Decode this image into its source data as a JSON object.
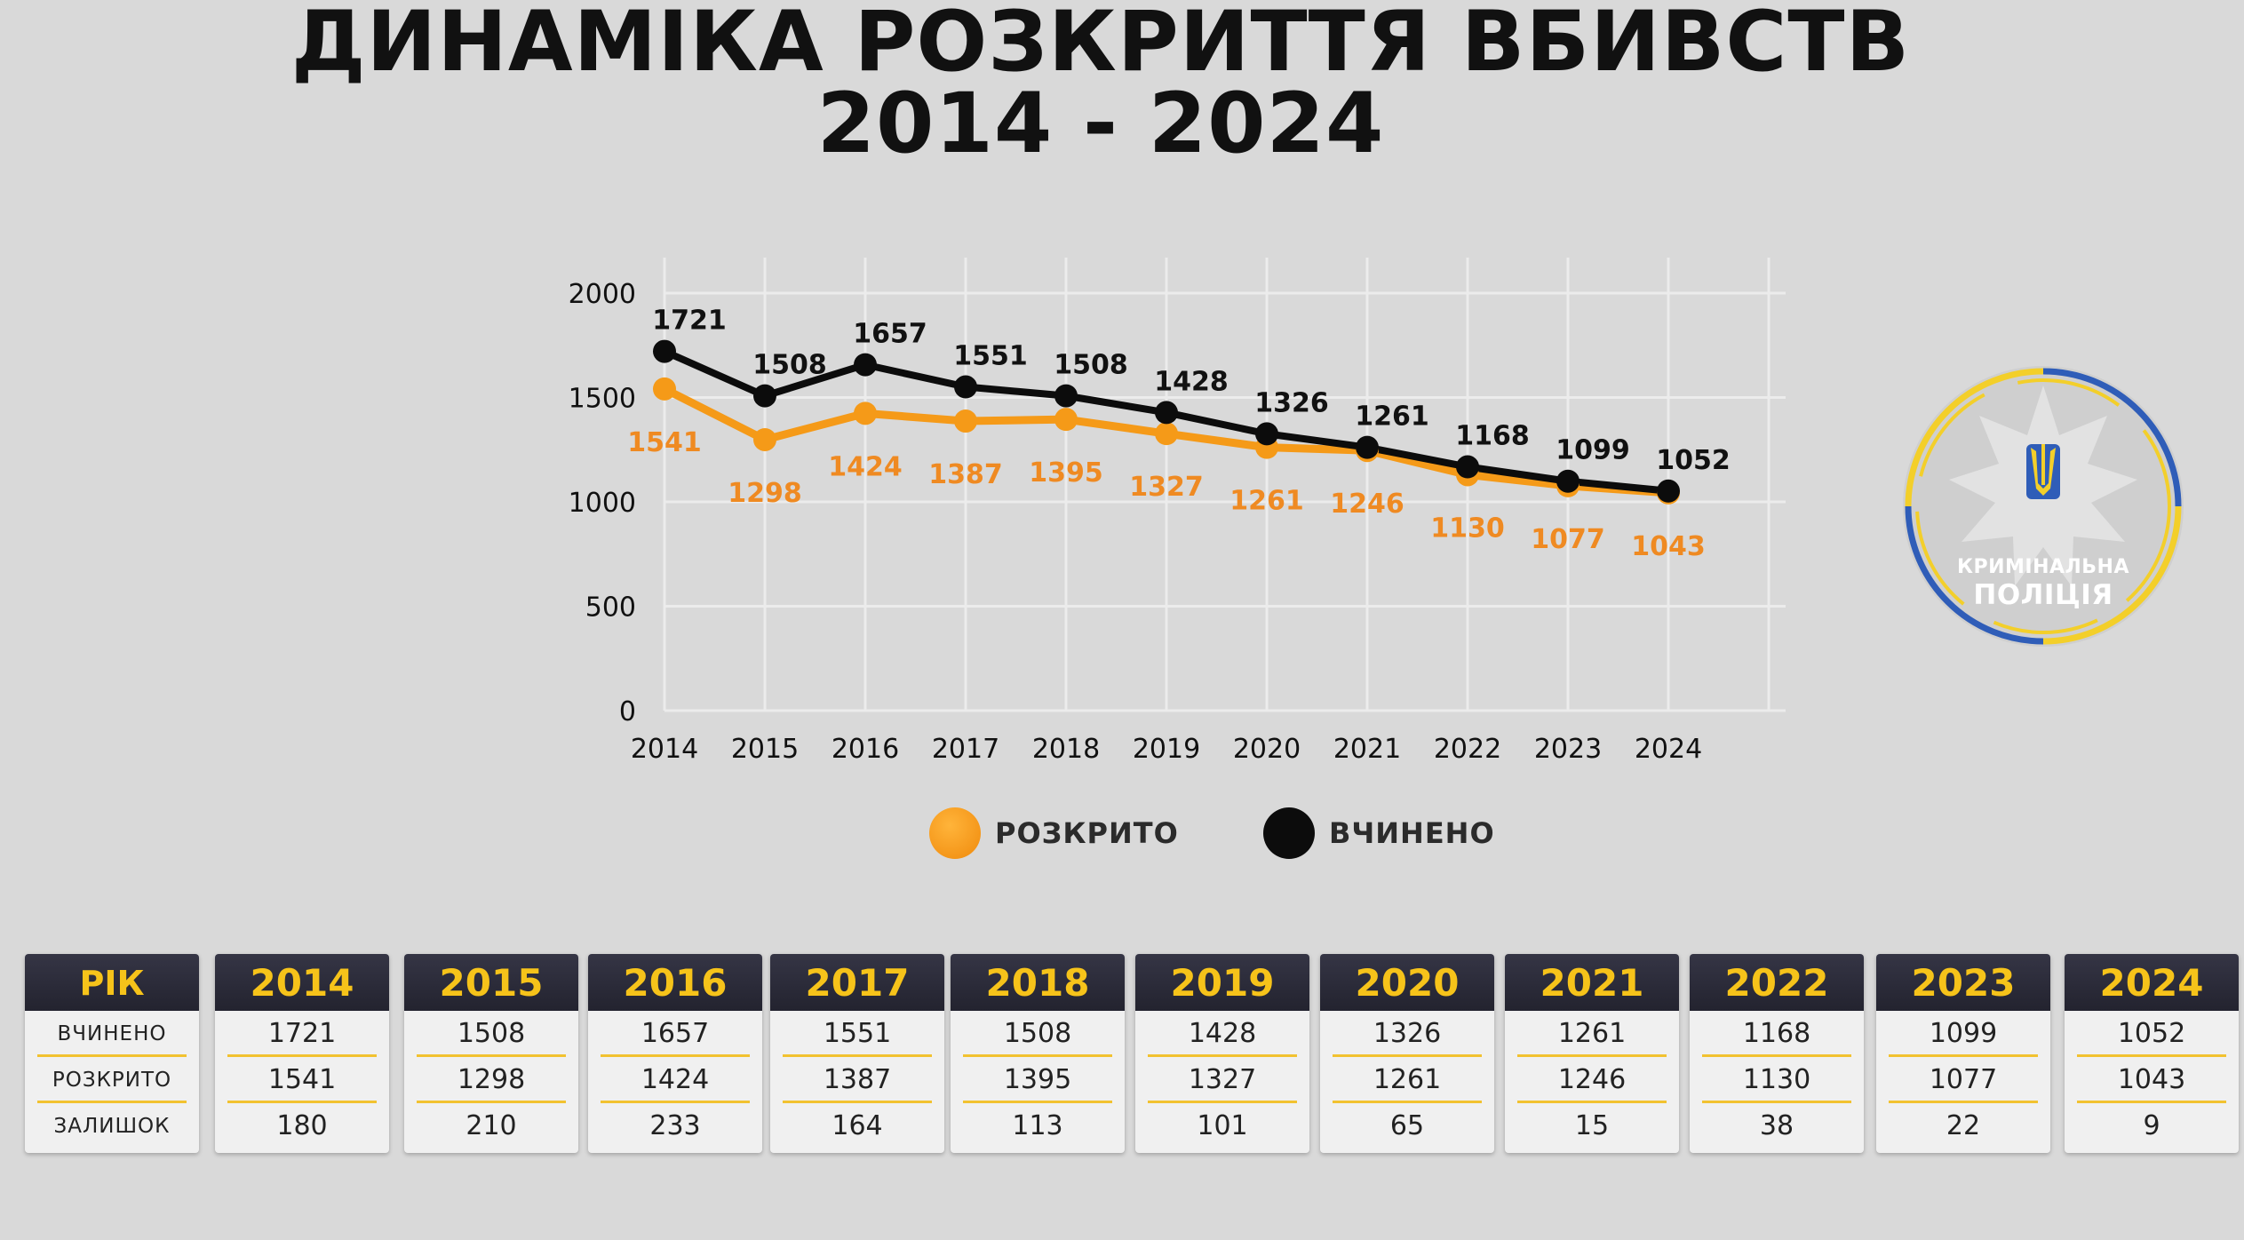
{
  "title_line1": "ДИНАМІКА РОЗКРИТТЯ ВБИВСТВ",
  "title_line2": "2014 - 2024",
  "colors": {
    "orange": "#f59a18",
    "black": "#0c0c0c",
    "label_orange": "#ef8a22",
    "table_head": "#2c2c3a",
    "table_year": "#f6c31a",
    "badge_blue": "#2f5db8",
    "badge_yellow": "#f3cf2a"
  },
  "chart_data": {
    "type": "line",
    "x": [
      "2014",
      "2015",
      "2016",
      "2017",
      "2018",
      "2019",
      "2020",
      "2021",
      "2022",
      "2023",
      "2024"
    ],
    "series": [
      {
        "name": "ВЧИНЕНО",
        "color": "#0c0c0c",
        "values": [
          1721,
          1508,
          1657,
          1551,
          1508,
          1428,
          1326,
          1261,
          1168,
          1099,
          1052
        ]
      },
      {
        "name": "РОЗКРИТО",
        "color": "#f59a18",
        "values": [
          1541,
          1298,
          1424,
          1387,
          1395,
          1327,
          1261,
          1246,
          1130,
          1077,
          1043
        ]
      }
    ],
    "y_ticks": [
      "0",
      "500",
      "1000",
      "1500",
      "2000"
    ],
    "ylim": [
      0,
      2000
    ],
    "grid": true,
    "legend_position": "bottom"
  },
  "legend": {
    "orange": "РОЗКРИТО",
    "black": "ВЧИНЕНО"
  },
  "badge": {
    "line1": "КРИМІНАЛЬНА",
    "line2": "ПОЛІЦІЯ",
    "emblem": "trident-star-icon"
  },
  "table": {
    "header": "РІК",
    "row_labels": [
      "ВЧИНЕНО",
      "РОЗКРИТО",
      "ЗАЛИШОК"
    ],
    "columns": [
      {
        "year": "2014",
        "committed": "1721",
        "solved": "1541",
        "remaining": "180"
      },
      {
        "year": "2015",
        "committed": "1508",
        "solved": "1298",
        "remaining": "210"
      },
      {
        "year": "2016",
        "committed": "1657",
        "solved": "1424",
        "remaining": "233"
      },
      {
        "year": "2017",
        "committed": "1551",
        "solved": "1387",
        "remaining": "164"
      },
      {
        "year": "2018",
        "committed": "1508",
        "solved": "1395",
        "remaining": "113"
      },
      {
        "year": "2019",
        "committed": "1428",
        "solved": "1327",
        "remaining": "101"
      },
      {
        "year": "2020",
        "committed": "1326",
        "solved": "1261",
        "remaining": "65"
      },
      {
        "year": "2021",
        "committed": "1261",
        "solved": "1246",
        "remaining": "15"
      },
      {
        "year": "2022",
        "committed": "1168",
        "solved": "1130",
        "remaining": "38"
      },
      {
        "year": "2023",
        "committed": "1099",
        "solved": "1077",
        "remaining": "22"
      },
      {
        "year": "2024",
        "committed": "1052",
        "solved": "1043",
        "remaining": "9"
      }
    ]
  }
}
